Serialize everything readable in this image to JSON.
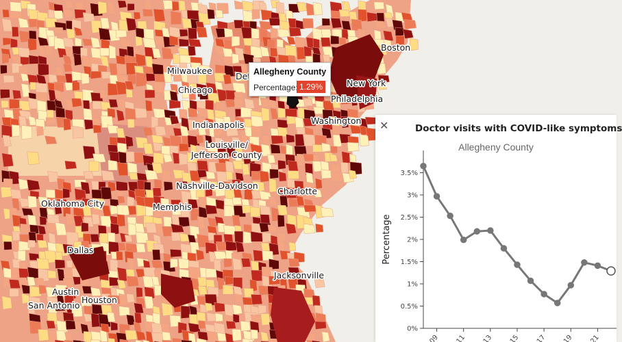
{
  "map": {
    "cities": [
      {
        "name": "Boston"
      },
      {
        "name": "New York"
      },
      {
        "name": "Philadelphia"
      },
      {
        "name": "Washington"
      },
      {
        "name": "Milwaukee"
      },
      {
        "name": "Chicago"
      },
      {
        "name": "Det"
      },
      {
        "name": "Indianapolis"
      },
      {
        "name": "Louisville/"
      },
      {
        "name": "Jefferson County"
      },
      {
        "name": "Nashville-Davidson"
      },
      {
        "name": "Charlotte"
      },
      {
        "name": "Oklahoma City"
      },
      {
        "name": "Memphis"
      },
      {
        "name": "Dallas"
      },
      {
        "name": "Austin"
      },
      {
        "name": "San Antonio"
      },
      {
        "name": "Houston"
      },
      {
        "name": "Jacksonville"
      }
    ],
    "colors": {
      "water": "#f1efe9",
      "scale": [
        "#fff1b8",
        "#fddc84",
        "#f9c6a3",
        "#f4a582",
        "#ec7b57",
        "#e0532d",
        "#c02a1e",
        "#8f1010",
        "#5e0808"
      ]
    }
  },
  "tooltip": {
    "title": "Allegheny County",
    "label": "Percentage:",
    "value": "1.29%"
  },
  "panel": {
    "close_icon": "close-icon",
    "title": "Doctor visits with COVID-like symptoms",
    "subtitle": "Allegheny County"
  },
  "chart_data": {
    "type": "line",
    "title": "Doctor visits with COVID-like symptoms",
    "subtitle": "Allegheny County",
    "ylabel": "Percentage",
    "ylim": [
      0,
      4
    ],
    "yticks": [
      "0%",
      "0.5%",
      "1%",
      "1.5%",
      "2%",
      "2.5%",
      "3%",
      "3.5%"
    ],
    "xtick_labels": [
      "09",
      "11",
      "13",
      "15",
      "17",
      "19",
      "21"
    ],
    "values": [
      3.65,
      2.97,
      2.53,
      1.99,
      2.18,
      2.2,
      1.8,
      1.43,
      1.07,
      0.77,
      0.57,
      0.97,
      1.48,
      1.41,
      1.29
    ],
    "line_color": "#777777"
  }
}
